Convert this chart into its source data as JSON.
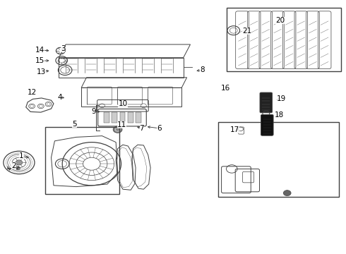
{
  "bg_color": "#ffffff",
  "lc": "#404040",
  "fig_width": 4.9,
  "fig_height": 3.6,
  "dpi": 100,
  "labels": {
    "1": [
      0.062,
      0.37,
      0.085,
      0.37
    ],
    "2": [
      0.04,
      0.33,
      0.065,
      0.33
    ],
    "3": [
      0.27,
      0.795,
      0.27,
      0.795
    ],
    "4": [
      0.215,
      0.62,
      0.24,
      0.62
    ],
    "5": [
      0.24,
      0.53,
      0.24,
      0.545
    ],
    "6": [
      0.47,
      0.505,
      0.47,
      0.52
    ],
    "7": [
      0.415,
      0.505,
      0.415,
      0.52
    ],
    "8": [
      0.57,
      0.72,
      0.555,
      0.72
    ],
    "9": [
      0.28,
      0.56,
      0.32,
      0.56
    ],
    "10": [
      0.36,
      0.59,
      0.36,
      0.595
    ],
    "11": [
      0.355,
      0.51,
      0.375,
      0.51
    ],
    "12": [
      0.1,
      0.63,
      0.1,
      0.63
    ],
    "13": [
      0.125,
      0.72,
      0.155,
      0.72
    ],
    "14": [
      0.12,
      0.8,
      0.155,
      0.8
    ],
    "15": [
      0.12,
      0.76,
      0.155,
      0.76
    ],
    "16": [
      0.66,
      0.65,
      0.66,
      0.65
    ],
    "17": [
      0.685,
      0.49,
      0.71,
      0.49
    ],
    "18": [
      0.8,
      0.545,
      0.785,
      0.545
    ],
    "19": [
      0.81,
      0.61,
      0.79,
      0.61
    ],
    "20": [
      0.81,
      0.92,
      0.81,
      0.92
    ],
    "21": [
      0.715,
      0.875,
      0.73,
      0.875
    ]
  }
}
